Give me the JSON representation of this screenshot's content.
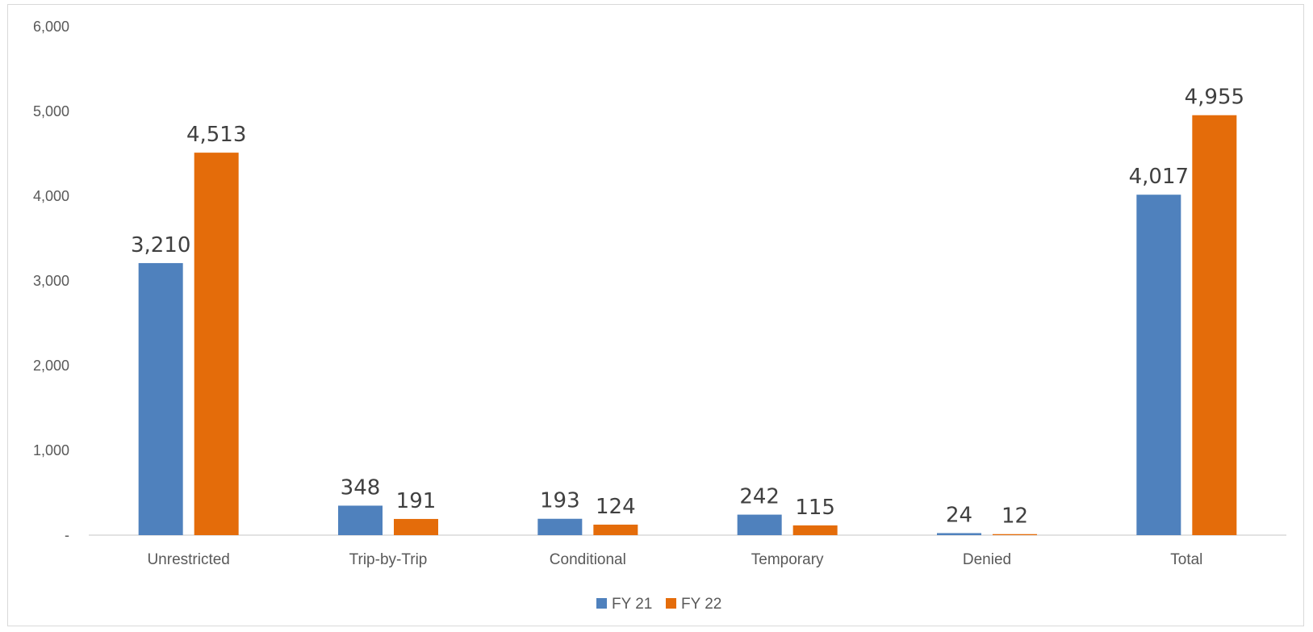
{
  "chart_data": {
    "type": "bar",
    "categories": [
      "Unrestricted",
      "Trip-by-Trip",
      "Conditional",
      "Temporary",
      "Denied",
      "Total"
    ],
    "series": [
      {
        "name": "FY 21",
        "color": "#4f81bd",
        "values": [
          3210,
          348,
          193,
          242,
          24,
          4017
        ],
        "labels": [
          "3,210",
          "348",
          "193",
          "242",
          "24",
          "4,017"
        ]
      },
      {
        "name": "FY 22",
        "color": "#e46c0a",
        "values": [
          4513,
          191,
          124,
          115,
          12,
          4955
        ],
        "labels": [
          "4,513",
          "191",
          "124",
          "115",
          "12",
          "4,955"
        ]
      }
    ],
    "y_ticks": [
      {
        "value": 0,
        "label": "-"
      },
      {
        "value": 1000,
        "label": "1,000"
      },
      {
        "value": 2000,
        "label": "2,000"
      },
      {
        "value": 3000,
        "label": "3,000"
      },
      {
        "value": 4000,
        "label": "4,000"
      },
      {
        "value": 5000,
        "label": "5,000"
      },
      {
        "value": 6000,
        "label": "6,000"
      }
    ],
    "ylim": [
      0,
      6000
    ],
    "grid": false,
    "legend": "bottom-center"
  }
}
